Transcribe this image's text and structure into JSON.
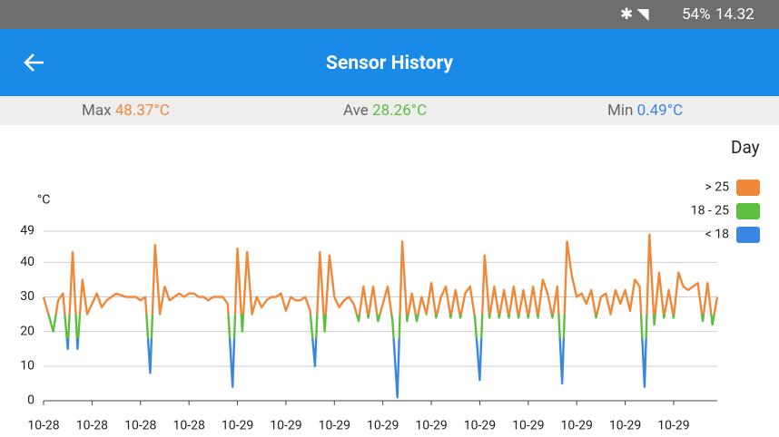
{
  "status_bar": {
    "battery": "54%",
    "time": "14.32"
  },
  "header": {
    "title": "Sensor History"
  },
  "stats": {
    "max_label": "Max",
    "max_value": "48.37°C",
    "ave_label": "Ave",
    "ave_value": "28.26°C",
    "min_label": "Min",
    "min_value": "0.49°C"
  },
  "period": "Day",
  "chart_data": {
    "type": "line",
    "y_label": "°C",
    "categories": [
      "10-28",
      null,
      null,
      null,
      null,
      null,
      null,
      null,
      null,
      null,
      "10-28",
      null,
      null,
      null,
      null,
      null,
      null,
      null,
      null,
      null,
      "10-28",
      null,
      null,
      null,
      null,
      null,
      null,
      null,
      null,
      null,
      "10-28",
      null,
      null,
      null,
      null,
      null,
      null,
      null,
      null,
      null,
      "10-29",
      null,
      null,
      null,
      null,
      null,
      null,
      null,
      null,
      null,
      "10-29",
      null,
      null,
      null,
      null,
      null,
      null,
      null,
      null,
      null,
      "10-29",
      null,
      null,
      null,
      null,
      null,
      null,
      null,
      null,
      null,
      "10-29",
      null,
      null,
      null,
      null,
      null,
      null,
      null,
      null,
      null,
      "10-29",
      null,
      null,
      null,
      null,
      null,
      null,
      null,
      null,
      null,
      "10-29",
      null,
      null,
      null,
      null,
      null,
      null,
      null,
      null,
      null,
      "10-29",
      null,
      null,
      null,
      null,
      null,
      null,
      null,
      null,
      null,
      "10-29",
      null,
      null,
      null,
      null,
      null,
      null,
      null,
      null,
      null,
      "10-29",
      null,
      null,
      null,
      null,
      null,
      null,
      null,
      null,
      null,
      "10-29",
      null,
      null,
      null,
      null,
      null,
      null,
      null,
      null,
      null
    ],
    "values": [
      30,
      25,
      20,
      29,
      31,
      15,
      43,
      15,
      35,
      25,
      28,
      31,
      27,
      29,
      30,
      31,
      30.5,
      30,
      30,
      30,
      29,
      30,
      8,
      45,
      25,
      33,
      29,
      30,
      31,
      30,
      31,
      31,
      30,
      30,
      29,
      30,
      30,
      30,
      28,
      4,
      44,
      20,
      43,
      25,
      30,
      27,
      29,
      30,
      30,
      31,
      26,
      30,
      29,
      29,
      30,
      26,
      10,
      43,
      20,
      42,
      30,
      27,
      29,
      30,
      28,
      23,
      33,
      24,
      33,
      23,
      28,
      33,
      23,
      1,
      46,
      23,
      31,
      23,
      30,
      25,
      34,
      24,
      30,
      33,
      24,
      32,
      24,
      31,
      33,
      24,
      6,
      42,
      24,
      33,
      24,
      32,
      24,
      33,
      24,
      32,
      24,
      33,
      24,
      35,
      31,
      24,
      33,
      5,
      46,
      36,
      30,
      31,
      28,
      32,
      24,
      30,
      31,
      25,
      32,
      28,
      32,
      26,
      35,
      33,
      4,
      48,
      22,
      37,
      24,
      32,
      24,
      37,
      33,
      32,
      33,
      34,
      23,
      34,
      22,
      30
    ],
    "bands": [
      {
        "label": "> 25",
        "color": "#f0883a",
        "min": 25
      },
      {
        "label": "18 - 25",
        "color": "#5cbf3f",
        "min": 18,
        "max": 25
      },
      {
        "label": "< 18",
        "color": "#3b86e0",
        "max": 18
      }
    ],
    "ylim": [
      0,
      49
    ],
    "yticks": [
      0,
      10,
      20,
      30,
      40,
      49
    ],
    "grid": true
  }
}
